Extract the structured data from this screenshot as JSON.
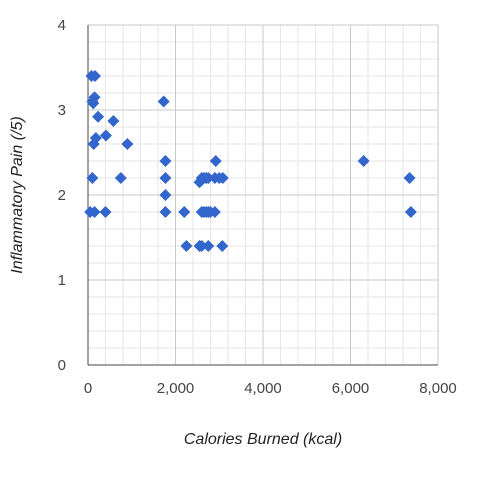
{
  "chart_data": {
    "type": "scatter",
    "title": "",
    "xlabel": "Calories Burned (kcal)",
    "ylabel": "Inflammatory Pain (/5)",
    "xlim": [
      0,
      8000
    ],
    "ylim": [
      0,
      4
    ],
    "x_ticks": [
      0,
      2000,
      4000,
      6000,
      8000
    ],
    "x_tick_labels": [
      "0",
      "2,000",
      "4,000",
      "6,000",
      "8,000"
    ],
    "y_ticks": [
      0,
      1,
      2,
      3,
      4
    ],
    "y_tick_labels": [
      "0",
      "1",
      "2",
      "3",
      "4"
    ],
    "grid": true,
    "legend": "none",
    "marker": "diamond",
    "color": "#3366cc",
    "series": [
      {
        "x": [
          80,
          160,
          100,
          150,
          120,
          230,
          410,
          580,
          180,
          130,
          900,
          100,
          750,
          50,
          150,
          400,
          1730,
          1770,
          1770,
          1770,
          1770,
          2200,
          2550,
          2600,
          2650,
          2700,
          2750,
          2900,
          3000,
          3080,
          2920,
          2600,
          2650,
          2700,
          2750,
          2800,
          2900,
          2250,
          2550,
          2600,
          2750,
          3070,
          6300,
          7350,
          7380
        ],
        "y": [
          3.4,
          3.4,
          3.1,
          3.15,
          3.08,
          2.92,
          2.7,
          2.87,
          2.67,
          2.6,
          2.6,
          2.2,
          2.2,
          1.8,
          1.8,
          1.8,
          3.1,
          2.4,
          2.2,
          2.0,
          1.8,
          1.8,
          2.15,
          2.2,
          2.2,
          2.2,
          2.2,
          2.2,
          2.2,
          2.2,
          2.4,
          1.8,
          1.8,
          1.8,
          1.8,
          1.8,
          1.8,
          1.4,
          1.4,
          1.4,
          1.4,
          1.4,
          2.4,
          2.2,
          1.8
        ]
      }
    ]
  }
}
